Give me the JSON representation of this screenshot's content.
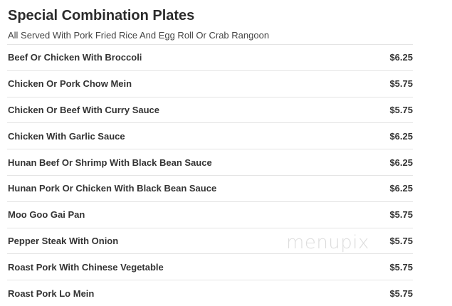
{
  "section": {
    "title": "Special Combination Plates",
    "subtitle": "All Served With Pork Fried Rice And Egg Roll Or Crab Rangoon",
    "items": [
      {
        "name": "Beef Or Chicken With Broccoli",
        "price": "$6.25"
      },
      {
        "name": "Chicken Or Pork Chow Mein",
        "price": "$5.75"
      },
      {
        "name": "Chicken Or Beef With Curry Sauce",
        "price": "$5.75"
      },
      {
        "name": "Chicken With Garlic Sauce",
        "price": "$6.25"
      },
      {
        "name": "Hunan Beef Or Shrimp With Black Bean Sauce",
        "price": "$6.25"
      },
      {
        "name": "Hunan Pork Or Chicken With Black Bean Sauce",
        "price": "$6.25"
      },
      {
        "name": "Moo Goo Gai Pan",
        "price": "$5.75"
      },
      {
        "name": "Pepper Steak With Onion",
        "price": "$5.75"
      },
      {
        "name": "Roast Pork With Chinese Vegetable",
        "price": "$5.75"
      },
      {
        "name": "Roast Pork Lo Mein",
        "price": "$5.75"
      }
    ]
  },
  "watermark": "menupix"
}
